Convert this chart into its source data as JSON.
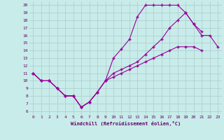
{
  "bg_color": "#c8ecea",
  "line_color": "#990099",
  "grid_color": "#aacccc",
  "xlabel": "Windchill (Refroidissement éolien,°C)",
  "xlim": [
    -0.5,
    23.5
  ],
  "ylim": [
    5.5,
    20.5
  ],
  "xticks": [
    0,
    1,
    2,
    3,
    4,
    5,
    6,
    7,
    8,
    9,
    10,
    11,
    12,
    13,
    14,
    15,
    16,
    17,
    18,
    19,
    20,
    21,
    22,
    23
  ],
  "yticks": [
    6,
    7,
    8,
    9,
    10,
    11,
    12,
    13,
    14,
    15,
    16,
    17,
    18,
    19,
    20
  ],
  "line1_x": [
    0,
    1,
    2,
    3,
    4,
    5,
    6,
    7,
    8,
    9,
    10,
    11,
    12,
    13,
    14,
    15,
    16,
    17,
    18,
    19,
    20,
    21,
    22,
    23
  ],
  "line1_y": [
    11,
    10,
    10,
    9,
    8,
    8,
    6.5,
    7.2,
    8.5,
    10,
    13,
    14.2,
    15.5,
    18.5,
    20,
    20,
    20,
    20,
    20,
    19,
    17.5,
    16,
    16,
    14.5
  ],
  "line2_x": [
    0,
    1,
    2,
    3,
    4,
    5,
    6,
    7,
    8,
    9,
    10,
    11,
    12,
    13,
    14,
    15,
    16,
    17,
    18,
    19,
    20,
    21
  ],
  "line2_y": [
    11,
    10,
    10,
    9,
    8,
    8,
    6.5,
    7.2,
    8.5,
    10,
    11,
    11.5,
    12,
    12.5,
    13.5,
    14.5,
    15.5,
    17,
    18,
    19,
    17.5,
    16.5
  ],
  "line3_x": [
    0,
    1,
    2,
    3,
    4,
    5,
    6,
    7,
    8,
    9,
    10,
    11,
    12,
    13,
    14,
    15,
    16,
    17,
    18,
    19,
    20,
    21,
    22,
    23
  ],
  "line3_y": [
    11,
    10,
    10,
    9,
    8,
    8,
    6.5,
    7.2,
    8.5,
    10,
    10.5,
    11,
    11.5,
    12,
    12.5,
    13,
    13.5,
    14,
    14.5,
    14.5,
    14.5,
    14,
    null,
    null
  ]
}
